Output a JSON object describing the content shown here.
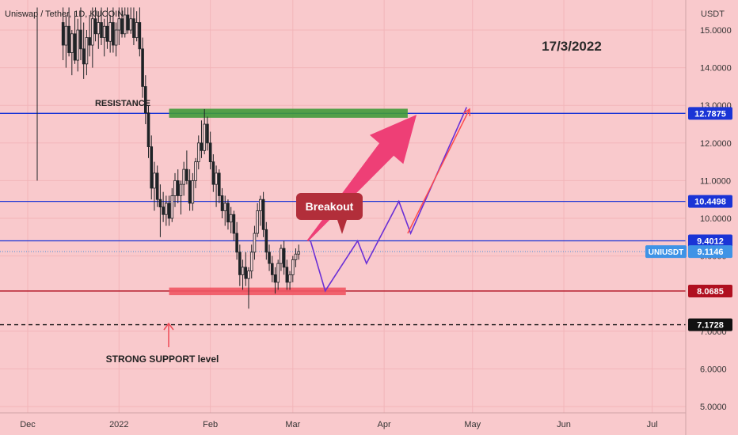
{
  "header": {
    "symbol_label": "Uniswap / Tether, 1D, KUCOIN",
    "currency": "USDT"
  },
  "chart_data": {
    "type": "candlestick",
    "ylim": [
      4.7,
      15.6
    ],
    "y_ticks": [
      "5.0000",
      "6.0000",
      "7.0000",
      "9.0000",
      "10.0000",
      "11.0000",
      "12.0000",
      "13.0000",
      "14.0000",
      "15.0000"
    ],
    "x_ticks": [
      {
        "label": "Dec",
        "day": 0
      },
      {
        "label": "2022",
        "day": 31
      },
      {
        "label": "Feb",
        "day": 62
      },
      {
        "label": "Mar",
        "day": 90
      },
      {
        "label": "Apr",
        "day": 121
      },
      {
        "label": "May",
        "day": 151
      },
      {
        "label": "Jun",
        "day": 182
      },
      {
        "label": "Jul",
        "day": 212
      }
    ],
    "horizontal_levels": [
      {
        "value": 12.7875,
        "label": "12.7875",
        "color": "#1a34d6",
        "badge": "#1a34d6"
      },
      {
        "value": 10.4498,
        "label": "10.4498",
        "color": "#1a34d6",
        "badge": "#1a34d6"
      },
      {
        "value": 9.4012,
        "label": "9.4012",
        "color": "#1a34d6",
        "badge": "#1a34d6"
      },
      {
        "value": 8.0685,
        "label": "8.0685",
        "color": "#b01020",
        "badge": "#b01020"
      },
      {
        "value": 7.1728,
        "label": "7.1728",
        "color": "#111111",
        "badge": "#111111",
        "dashed": true
      }
    ],
    "current_price": {
      "value": 9.1146,
      "label": "9.1146",
      "symbol": "UNIUSDT"
    },
    "candles": [
      {
        "o": 15.2,
        "h": 15.6,
        "l": 14.2,
        "c": 14.6
      },
      {
        "o": 14.6,
        "h": 15.4,
        "l": 14.0,
        "c": 15.1
      },
      {
        "o": 15.1,
        "h": 15.6,
        "l": 14.3,
        "c": 14.4
      },
      {
        "o": 14.4,
        "h": 15.0,
        "l": 13.8,
        "c": 14.9
      },
      {
        "o": 14.9,
        "h": 15.5,
        "l": 14.1,
        "c": 14.2
      },
      {
        "o": 14.2,
        "h": 15.3,
        "l": 13.9,
        "c": 15.0
      },
      {
        "o": 15.0,
        "h": 15.6,
        "l": 14.2,
        "c": 14.5
      },
      {
        "o": 14.5,
        "h": 15.2,
        "l": 13.7,
        "c": 14.1
      },
      {
        "o": 14.1,
        "h": 15.0,
        "l": 13.8,
        "c": 14.8
      },
      {
        "o": 14.8,
        "h": 15.4,
        "l": 14.3,
        "c": 14.6
      },
      {
        "o": 14.6,
        "h": 15.6,
        "l": 14.0,
        "c": 15.3
      },
      {
        "o": 15.3,
        "h": 15.6,
        "l": 14.7,
        "c": 14.9
      },
      {
        "o": 14.9,
        "h": 15.5,
        "l": 14.5,
        "c": 15.2
      },
      {
        "o": 15.2,
        "h": 15.6,
        "l": 14.6,
        "c": 14.8
      },
      {
        "o": 14.8,
        "h": 15.3,
        "l": 14.3,
        "c": 15.1
      },
      {
        "o": 15.1,
        "h": 15.6,
        "l": 14.5,
        "c": 14.7
      },
      {
        "o": 14.7,
        "h": 15.4,
        "l": 14.4,
        "c": 15.2
      },
      {
        "o": 15.2,
        "h": 15.6,
        "l": 14.4,
        "c": 14.6
      },
      {
        "o": 14.6,
        "h": 15.2,
        "l": 14.3,
        "c": 15.0
      },
      {
        "o": 15.0,
        "h": 15.6,
        "l": 14.6,
        "c": 15.3
      },
      {
        "o": 15.3,
        "h": 15.6,
        "l": 14.8,
        "c": 14.9
      },
      {
        "o": 14.9,
        "h": 15.6,
        "l": 14.8,
        "c": 15.4
      },
      {
        "o": 15.4,
        "h": 15.6,
        "l": 14.9,
        "c": 15.0
      },
      {
        "o": 15.0,
        "h": 15.6,
        "l": 14.9,
        "c": 15.3
      },
      {
        "o": 15.3,
        "h": 15.6,
        "l": 14.6,
        "c": 14.8
      },
      {
        "o": 14.8,
        "h": 15.5,
        "l": 14.7,
        "c": 15.2
      },
      {
        "o": 15.2,
        "h": 15.6,
        "l": 14.3,
        "c": 14.5
      },
      {
        "o": 14.5,
        "h": 14.8,
        "l": 13.2,
        "c": 13.5
      },
      {
        "o": 13.5,
        "h": 13.8,
        "l": 12.5,
        "c": 12.8
      },
      {
        "o": 12.8,
        "h": 13.0,
        "l": 11.6,
        "c": 11.9
      },
      {
        "o": 11.9,
        "h": 12.2,
        "l": 10.5,
        "c": 10.8
      },
      {
        "o": 10.8,
        "h": 11.5,
        "l": 10.2,
        "c": 11.2
      },
      {
        "o": 11.2,
        "h": 11.4,
        "l": 10.3,
        "c": 10.5
      },
      {
        "o": 10.5,
        "h": 10.9,
        "l": 9.5,
        "c": 10.3
      },
      {
        "o": 10.3,
        "h": 10.7,
        "l": 9.9,
        "c": 10.1
      },
      {
        "o": 10.1,
        "h": 10.6,
        "l": 9.8,
        "c": 10.4
      },
      {
        "o": 10.4,
        "h": 10.6,
        "l": 9.8,
        "c": 10.0
      },
      {
        "o": 10.0,
        "h": 10.8,
        "l": 9.9,
        "c": 10.6
      },
      {
        "o": 10.6,
        "h": 11.2,
        "l": 10.3,
        "c": 11.0
      },
      {
        "o": 11.0,
        "h": 11.3,
        "l": 10.4,
        "c": 10.6
      },
      {
        "o": 10.6,
        "h": 11.0,
        "l": 10.1,
        "c": 10.9
      },
      {
        "o": 10.9,
        "h": 11.5,
        "l": 10.6,
        "c": 11.3
      },
      {
        "o": 11.3,
        "h": 11.8,
        "l": 10.9,
        "c": 11.0
      },
      {
        "o": 11.0,
        "h": 11.3,
        "l": 10.2,
        "c": 10.4
      },
      {
        "o": 10.4,
        "h": 11.2,
        "l": 10.2,
        "c": 11.0
      },
      {
        "o": 11.0,
        "h": 11.6,
        "l": 10.8,
        "c": 11.5
      },
      {
        "o": 11.5,
        "h": 12.2,
        "l": 11.3,
        "c": 12.0
      },
      {
        "o": 12.0,
        "h": 12.6,
        "l": 11.6,
        "c": 11.8
      },
      {
        "o": 11.8,
        "h": 12.9,
        "l": 11.7,
        "c": 12.5
      },
      {
        "o": 12.5,
        "h": 12.7,
        "l": 11.8,
        "c": 12.0
      },
      {
        "o": 12.0,
        "h": 12.3,
        "l": 11.3,
        "c": 11.5
      },
      {
        "o": 11.5,
        "h": 11.7,
        "l": 10.7,
        "c": 10.9
      },
      {
        "o": 10.9,
        "h": 11.4,
        "l": 10.3,
        "c": 11.2
      },
      {
        "o": 11.2,
        "h": 11.3,
        "l": 10.4,
        "c": 10.6
      },
      {
        "o": 10.6,
        "h": 10.8,
        "l": 10.0,
        "c": 10.2
      },
      {
        "o": 10.2,
        "h": 10.6,
        "l": 9.8,
        "c": 10.4
      },
      {
        "o": 10.4,
        "h": 10.5,
        "l": 9.7,
        "c": 9.9
      },
      {
        "o": 9.9,
        "h": 10.3,
        "l": 9.6,
        "c": 10.1
      },
      {
        "o": 10.1,
        "h": 10.2,
        "l": 9.4,
        "c": 9.6
      },
      {
        "o": 9.6,
        "h": 9.9,
        "l": 8.9,
        "c": 9.1
      },
      {
        "o": 9.1,
        "h": 9.3,
        "l": 8.2,
        "c": 8.5
      },
      {
        "o": 8.5,
        "h": 8.9,
        "l": 8.1,
        "c": 8.7
      },
      {
        "o": 8.7,
        "h": 9.1,
        "l": 8.2,
        "c": 8.4
      },
      {
        "o": 8.4,
        "h": 8.7,
        "l": 7.6,
        "c": 8.6
      },
      {
        "o": 8.6,
        "h": 9.3,
        "l": 8.4,
        "c": 9.1
      },
      {
        "o": 9.1,
        "h": 9.8,
        "l": 8.9,
        "c": 9.6
      },
      {
        "o": 9.6,
        "h": 10.4,
        "l": 9.5,
        "c": 10.2
      },
      {
        "o": 10.2,
        "h": 10.6,
        "l": 9.8,
        "c": 10.5
      },
      {
        "o": 10.5,
        "h": 10.7,
        "l": 9.5,
        "c": 9.7
      },
      {
        "o": 9.7,
        "h": 9.9,
        "l": 8.9,
        "c": 9.1
      },
      {
        "o": 9.1,
        "h": 9.3,
        "l": 8.6,
        "c": 8.8
      },
      {
        "o": 8.8,
        "h": 9.0,
        "l": 8.3,
        "c": 8.5
      },
      {
        "o": 8.5,
        "h": 8.7,
        "l": 8.0,
        "c": 8.3
      },
      {
        "o": 8.3,
        "h": 8.9,
        "l": 8.1,
        "c": 8.8
      },
      {
        "o": 8.8,
        "h": 9.3,
        "l": 8.6,
        "c": 9.2
      },
      {
        "o": 9.2,
        "h": 9.4,
        "l": 8.5,
        "c": 8.7
      },
      {
        "o": 8.7,
        "h": 8.9,
        "l": 8.1,
        "c": 8.3
      },
      {
        "o": 8.3,
        "h": 8.6,
        "l": 8.1,
        "c": 8.5
      },
      {
        "o": 8.5,
        "h": 9.0,
        "l": 8.3,
        "c": 8.9
      },
      {
        "o": 8.9,
        "h": 9.2,
        "l": 8.7,
        "c": 9.05
      },
      {
        "o": 9.05,
        "h": 9.3,
        "l": 8.9,
        "c": 9.1146
      }
    ],
    "texts": {
      "date": "17/3/2022",
      "resistance": "RESISTANCE",
      "support": "STRONG SUPPORT level",
      "breakout": "Breakout"
    },
    "annotations": {
      "resistance_zone": {
        "x_start": 48,
        "x_end": 129,
        "y_low": 12.67,
        "y_high": 12.91,
        "color": "#3f9a3a"
      },
      "support_zone": {
        "x_start": 48,
        "x_end": 108,
        "y_low": 7.96,
        "y_high": 8.16,
        "color": "#f05563"
      },
      "projection_purple": [
        [
          96,
          9.4
        ],
        [
          101,
          8.07
        ],
        [
          112,
          9.4
        ],
        [
          115,
          8.8
        ],
        [
          126,
          10.45
        ],
        [
          130,
          9.6
        ],
        [
          149,
          12.95
        ]
      ],
      "projection_red_line": [
        [
          129,
          9.6
        ],
        [
          150,
          12.9
        ]
      ],
      "arrow_pink": [
        [
          95,
          9.4
        ],
        [
          132,
          12.75
        ]
      ]
    }
  }
}
